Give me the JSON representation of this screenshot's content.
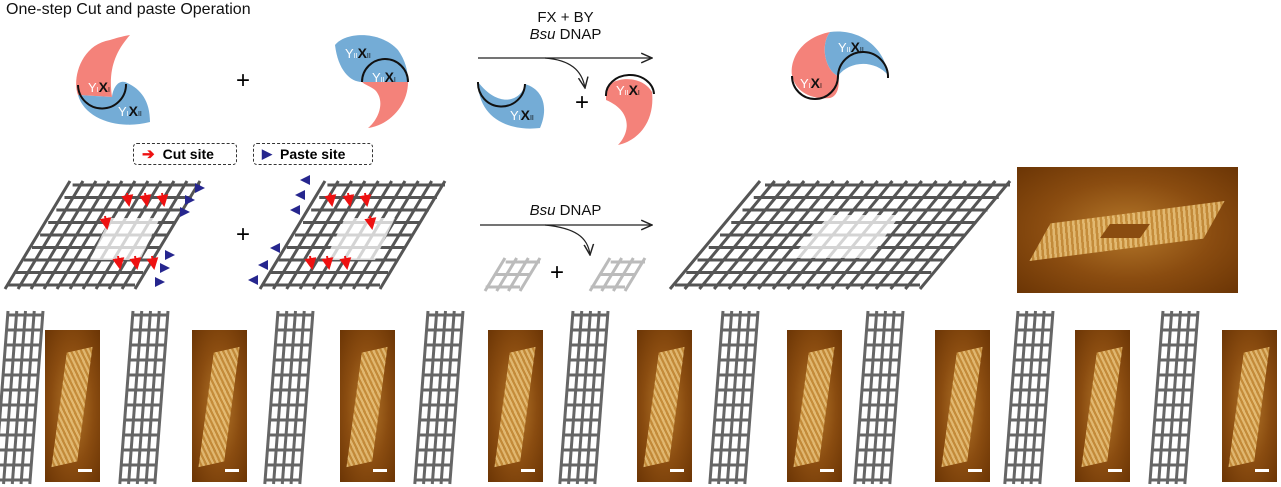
{
  "title": "One-step Cut and paste Operation",
  "colors": {
    "pink": "#f4827a",
    "blue": "#74acd6",
    "cut_arrow": "#ee1111",
    "paste_arrow": "#26268e",
    "lattice": "#555555",
    "lattice_removed": "#cccccc"
  },
  "reaction_top": {
    "reagents_line1": "FX + BY",
    "reagents_enzyme_italic": "Bsu",
    "reagents_enzyme_rest": " DNAP",
    "plus": "+"
  },
  "reaction_mid": {
    "enzyme_italic": "Bsu",
    "enzyme_rest": " DNAP",
    "plus": "+"
  },
  "shapes": {
    "left_pink": {
      "y": "Y",
      "ysub": "I",
      "x": "X",
      "xsub": "I"
    },
    "left_blue": {
      "y": "Y",
      "ysub": "I",
      "x": "X",
      "xsub": "II"
    },
    "right_blue": {
      "y": "Y",
      "ysub": "II",
      "x": "X",
      "xsub": "II"
    },
    "right_pink": {
      "y": "Y",
      "ysub": "II",
      "x": "X",
      "xsub": "I"
    },
    "product_blue": {
      "y": "Y",
      "ysub": "I",
      "x": "X",
      "xsub": "II"
    },
    "product_pink": {
      "y": "Y",
      "ysub": "II",
      "x": "X",
      "xsub": "I"
    },
    "final_blue": {
      "y": "Y",
      "ysub": "II",
      "x": "X",
      "xsub": "II"
    },
    "final_pink": {
      "y": "Y",
      "ysub": "I",
      "x": "X",
      "xsub": "I"
    }
  },
  "legend": {
    "cut": "Cut site",
    "paste": "Paste site"
  },
  "icons": {
    "cut": "red-arrow-icon",
    "paste": "blue-triangle-icon"
  },
  "gallery_count": 9
}
